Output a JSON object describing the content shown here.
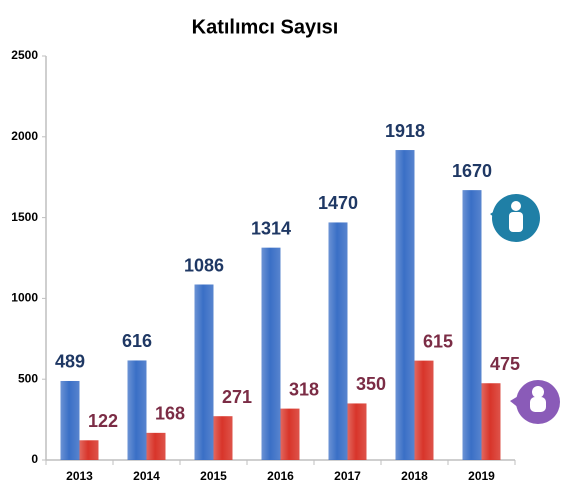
{
  "chart_data": {
    "type": "bar",
    "title": "Katılımcı Sayısı",
    "categories": [
      "2013",
      "2014",
      "2015",
      "2016",
      "2017",
      "2018",
      "2019"
    ],
    "series": [
      {
        "color": "#3a6fc6",
        "label_color": "#1f3864",
        "values": [
          489,
          616,
          1086,
          1314,
          1470,
          1918,
          1670
        ]
      },
      {
        "color": "#d8352a",
        "label_color": "#7b2c45",
        "values": [
          122,
          168,
          271,
          318,
          350,
          615,
          475
        ]
      }
    ],
    "ylim": [
      0,
      2500
    ],
    "yticks": [
      0,
      500,
      1000,
      1500,
      2000,
      2500
    ],
    "grid": false
  }
}
